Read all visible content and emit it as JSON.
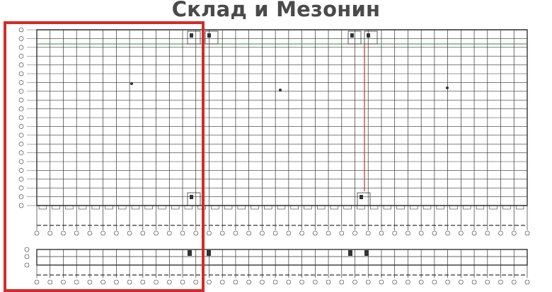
{
  "title": "Склад и Мезонин",
  "colors": {
    "highlight": "#d42a2a",
    "grid": "#333333",
    "green_line": "#3a8a3a",
    "red_axis": "#b33a2a"
  }
}
